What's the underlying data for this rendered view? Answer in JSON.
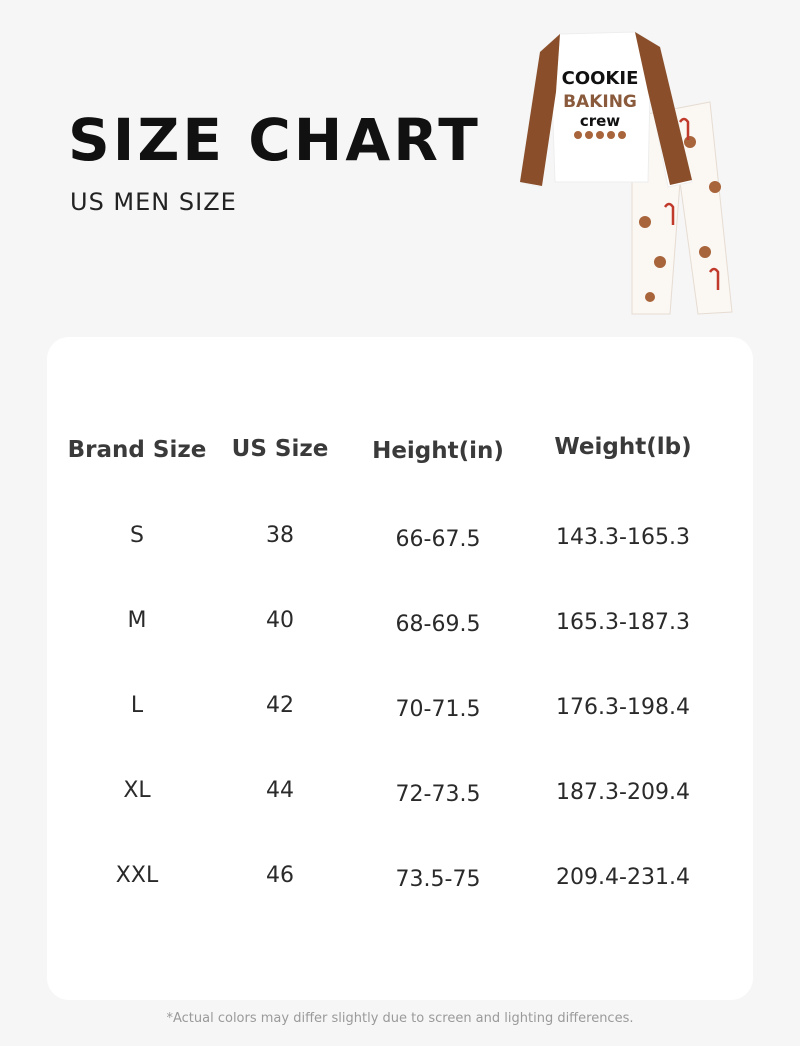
{
  "header": {
    "title": "SIZE CHART",
    "subtitle": "US MEN SIZE"
  },
  "product_graphic": {
    "text": [
      "COOKIE",
      "BAKING",
      "crew"
    ],
    "colors": {
      "sleeve": "#8a4f2a",
      "body": "#ffffff",
      "accent": "#c0392b"
    }
  },
  "table": {
    "columns": [
      "Brand Size",
      "US Size",
      "Height(in)",
      "Weight(lb)"
    ],
    "rows": [
      [
        "S",
        "38",
        "66-67.5",
        "143.3-165.3"
      ],
      [
        "M",
        "40",
        "68-69.5",
        "165.3-187.3"
      ],
      [
        "L",
        "42",
        "70-71.5",
        "176.3-198.4"
      ],
      [
        "XL",
        "44",
        "72-73.5",
        "187.3-209.4"
      ],
      [
        "XXL",
        "46",
        "73.5-75",
        "209.4-231.4"
      ]
    ]
  },
  "footnote": "*Actual colors may differ slightly due to screen and lighting differences."
}
